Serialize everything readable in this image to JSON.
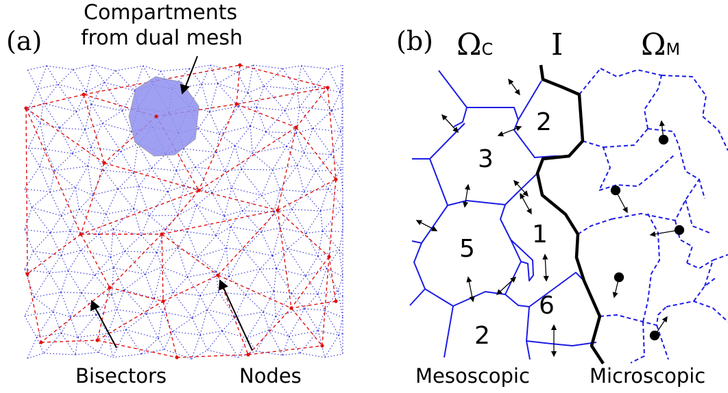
{
  "panel_a": {
    "label": "(a)",
    "annotations": {
      "compartments": [
        "Compartments",
        "from dual mesh"
      ],
      "bisectors": "Bisectors",
      "nodes": "Nodes"
    }
  },
  "panel_b": {
    "label": "(b)",
    "region_c": {
      "symbol": "Ω",
      "subscript": "C"
    },
    "interface": "I",
    "region_m": {
      "symbol": "Ω",
      "subscript": "M"
    },
    "compartment_numbers": [
      "2",
      "3",
      "1",
      "5",
      "6",
      "2"
    ],
    "bottom_labels": {
      "mesoscopic": "Mesoscopic",
      "microscopic": "Microscopic"
    }
  },
  "colors": {
    "bisector_blue": "#2a2ad8",
    "node_red": "#e01010",
    "compartment_fill": "#8f8ff0",
    "cell_blue": "#1c1ce6",
    "interface_black": "#000000"
  }
}
